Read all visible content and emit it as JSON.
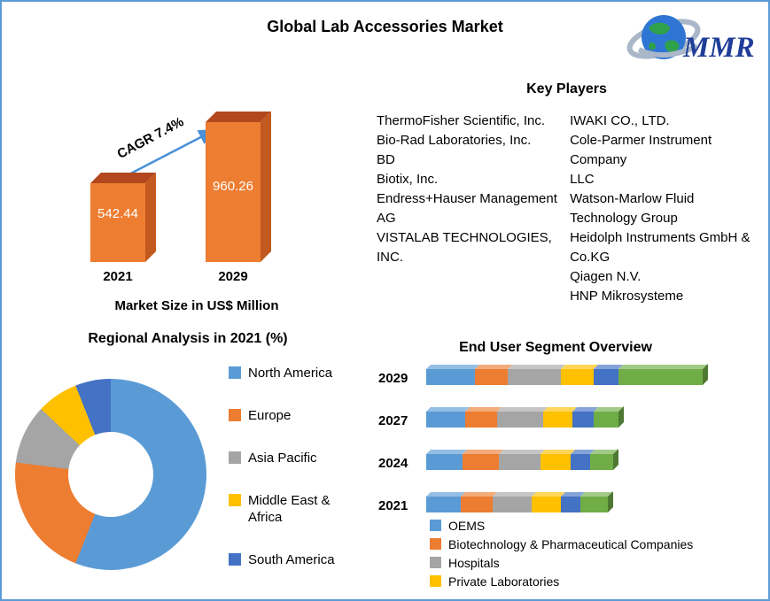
{
  "page": {
    "title": "Global Lab Accessories Market",
    "border_color": "#5b9bd5"
  },
  "logo": {
    "brand": "MMR"
  },
  "key_players": {
    "title": "Key Players",
    "column1": [
      "ThermoFisher Scientific, Inc.",
      "Bio-Rad Laboratories, Inc.",
      "BD",
      "Biotix, Inc.",
      "Endress+Hauser Management AG",
      "VISTALAB TECHNOLOGIES, INC."
    ],
    "column2": [
      "IWAKI CO., LTD.",
      "Cole-Parmer Instrument Company",
      "LLC",
      "Watson-Marlow Fluid Technology Group",
      "Heidolph Instruments GmbH & Co.KG",
      "Qiagen N.V.",
      "HNP Mikrosysteme"
    ]
  },
  "chart_data": [
    {
      "type": "bar",
      "title": "Market Size in US$ Million",
      "categories": [
        "2021",
        "2029"
      ],
      "values": [
        542.44,
        960.26
      ],
      "annotation": "CAGR 7.4%",
      "bar_color": "#ed7d31",
      "ylim": [
        0,
        1000
      ],
      "legend_position": "none"
    },
    {
      "type": "pie",
      "donut": true,
      "title": "Regional Analysis in 2021 (%)",
      "labels": [
        "North America",
        "Europe",
        "Asia Pacific",
        "Middle East & Africa",
        "South America"
      ],
      "values": [
        56,
        21,
        10,
        7,
        6
      ],
      "colors": [
        "#5b9bd5",
        "#ed7d31",
        "#a5a5a5",
        "#ffc000",
        "#4472c4"
      ],
      "legend_position": "right"
    },
    {
      "type": "bar",
      "stacked": true,
      "orientation": "horizontal",
      "title": "End User Segment Overview",
      "categories": [
        "2029",
        "2027",
        "2024",
        "2021"
      ],
      "series": [
        {
          "name": "OEMS",
          "color": "#5b9bd5",
          "in_legend": true,
          "values": [
            55,
            44,
            41,
            39
          ]
        },
        {
          "name": "Biotechnology & Pharmaceutical Companies",
          "color": "#ed7d31",
          "in_legend": true,
          "values": [
            37,
            36,
            41,
            36
          ]
        },
        {
          "name": "Hospitals",
          "color": "#a5a5a5",
          "in_legend": true,
          "values": [
            60,
            52,
            47,
            44
          ]
        },
        {
          "name": "Private Laboratories",
          "color": "#ffc000",
          "in_legend": true,
          "values": [
            37,
            33,
            34,
            33
          ]
        },
        {
          "name": "unlabeled-blue-segment",
          "color": "#4472c4",
          "in_legend": false,
          "values": [
            28,
            24,
            22,
            22
          ]
        },
        {
          "name": "unlabeled-green-segment",
          "color": "#70ad47",
          "in_legend": false,
          "values": [
            95,
            28,
            26,
            31
          ]
        }
      ],
      "legend_position": "bottom"
    }
  ]
}
